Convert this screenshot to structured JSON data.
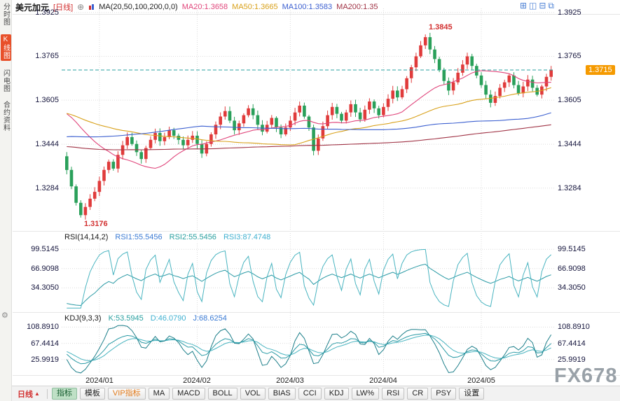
{
  "sidebar": {
    "items": [
      {
        "label": "分时图",
        "selected": false
      },
      {
        "label": "K线图",
        "selected": true
      },
      {
        "label": "闪电图",
        "selected": false
      },
      {
        "label": "合约资料",
        "selected": false
      }
    ]
  },
  "header": {
    "symbol": "美元加元",
    "period": "[日线]",
    "ma_label": "MA(20,50,100,200,0,0)",
    "ma_values": [
      {
        "label": "MA20:1.3658",
        "color": "#e0457b"
      },
      {
        "label": "MA50:1.3665",
        "color": "#d8a019"
      },
      {
        "label": "MA100:1.3583",
        "color": "#3b5fd0"
      },
      {
        "label": "MA200:1.35",
        "color": "#a03345"
      }
    ],
    "layout_icons": [
      {
        "name": "grid-layout-icon",
        "glyph": "⊞"
      },
      {
        "name": "horizontal-split-icon",
        "glyph": "◫"
      },
      {
        "name": "vertical-split-icon",
        "glyph": "⊟"
      },
      {
        "name": "fullscreen-layout-icon",
        "glyph": "⧉"
      }
    ]
  },
  "rsi": {
    "title": "RSI(14,14,2)",
    "readouts": [
      {
        "label": "RSI1:55.5456",
        "color": "#3b7bd4"
      },
      {
        "label": "RSI2:55.5456",
        "color": "#2aa0a0"
      },
      {
        "label": "RSI3:87.4748",
        "color": "#3fb0d0"
      }
    ],
    "axis": [
      "99.5145",
      "66.9098",
      "34.3050"
    ]
  },
  "kdj": {
    "title": "KDJ(9,3,3)",
    "readouts": [
      {
        "label": "K:53.5945",
        "color": "#2aa0a0"
      },
      {
        "label": "D:46.0790",
        "color": "#3fb0d0"
      },
      {
        "label": "J:68.6254",
        "color": "#3b7bd4"
      }
    ],
    "axis": [
      "108.8910",
      "67.4414",
      "25.9919"
    ]
  },
  "current_price": {
    "value": "1.3715",
    "badge_color": "#f59a00",
    "line_color": "#2aa0a0"
  },
  "x_axis": [
    "2024/01",
    "2024/02",
    "2024/03",
    "2024/04",
    "2024/05"
  ],
  "tabbar": {
    "period_label": "日线",
    "period_arrow": "▲",
    "tabs": [
      {
        "label": "指标",
        "variant": "selected"
      },
      {
        "label": "模板",
        "variant": "normal"
      },
      {
        "label": "VIP指标",
        "variant": "vip"
      },
      {
        "label": "MA",
        "variant": "normal"
      },
      {
        "label": "MACD",
        "variant": "normal"
      },
      {
        "label": "BOLL",
        "variant": "normal"
      },
      {
        "label": "VOL",
        "variant": "normal"
      },
      {
        "label": "BIAS",
        "variant": "normal"
      },
      {
        "label": "CCI",
        "variant": "normal"
      },
      {
        "label": "KDJ",
        "variant": "normal"
      },
      {
        "label": "LW%",
        "variant": "normal"
      },
      {
        "label": "RSI",
        "variant": "normal"
      },
      {
        "label": "CR",
        "variant": "normal"
      },
      {
        "label": "PSY",
        "variant": "normal"
      },
      {
        "label": "设置",
        "variant": "normal"
      }
    ]
  },
  "watermark": "FX678",
  "chart_data": {
    "type": "candlestick",
    "symbol": "美元加元",
    "period": "日线",
    "first_open": 1.34,
    "closes": [
      1.335,
      1.329,
      1.323,
      1.3185,
      1.3215,
      1.3245,
      1.327,
      1.331,
      1.335,
      1.338,
      1.3355,
      1.3405,
      1.344,
      1.347,
      1.3445,
      1.3415,
      1.339,
      1.343,
      1.346,
      1.3485,
      1.3455,
      1.347,
      1.3495,
      1.3475,
      1.346,
      1.344,
      1.346,
      1.3475,
      1.3445,
      1.341,
      1.3445,
      1.348,
      1.3515,
      1.3545,
      1.3565,
      1.353,
      1.3495,
      1.352,
      1.355,
      1.3575,
      1.355,
      1.3515,
      1.349,
      1.3515,
      1.354,
      1.3505,
      1.348,
      1.3505,
      1.353,
      1.356,
      1.3585,
      1.3545,
      1.3505,
      1.342,
      1.3465,
      1.351,
      1.355,
      1.358,
      1.3555,
      1.353,
      1.356,
      1.359,
      1.356,
      1.3535,
      1.357,
      1.36,
      1.3575,
      1.355,
      1.358,
      1.361,
      1.364,
      1.3615,
      1.3645,
      1.3685,
      1.3725,
      1.3765,
      1.3805,
      1.3835,
      1.379,
      1.3755,
      1.3715,
      1.3675,
      1.364,
      1.367,
      1.3705,
      1.3735,
      1.3765,
      1.373,
      1.3695,
      1.366,
      1.3625,
      1.3595,
      1.362,
      1.365,
      1.367,
      1.3695,
      1.366,
      1.363,
      1.3655,
      1.368,
      1.365,
      1.3625,
      1.3655,
      1.369,
      1.3715
    ],
    "month_ticks": [
      7,
      28,
      48,
      68,
      89
    ],
    "main_axis": [
      "1.3925",
      "1.3765",
      "1.3605",
      "1.3444",
      "1.3284"
    ],
    "price_range": [
      1.314,
      1.394
    ],
    "annotations": [
      {
        "text": "1.3845",
        "price": 1.3845,
        "index": 77,
        "dir": "high"
      },
      {
        "text": "1.3176",
        "price": 1.3176,
        "index": 3,
        "dir": "low"
      }
    ],
    "colors": {
      "up": "#e03b3b",
      "down": "#2aa05a"
    },
    "ma_windows": [
      20,
      50,
      100,
      200
    ],
    "prehistory": {
      "count": 120,
      "split": 50,
      "low": 1.326,
      "high": 1.356,
      "wiggle": 0.003
    },
    "rsi_periods": [
      14,
      2
    ],
    "kdj_params": [
      9,
      3,
      3
    ],
    "current_price": 1.3715
  }
}
